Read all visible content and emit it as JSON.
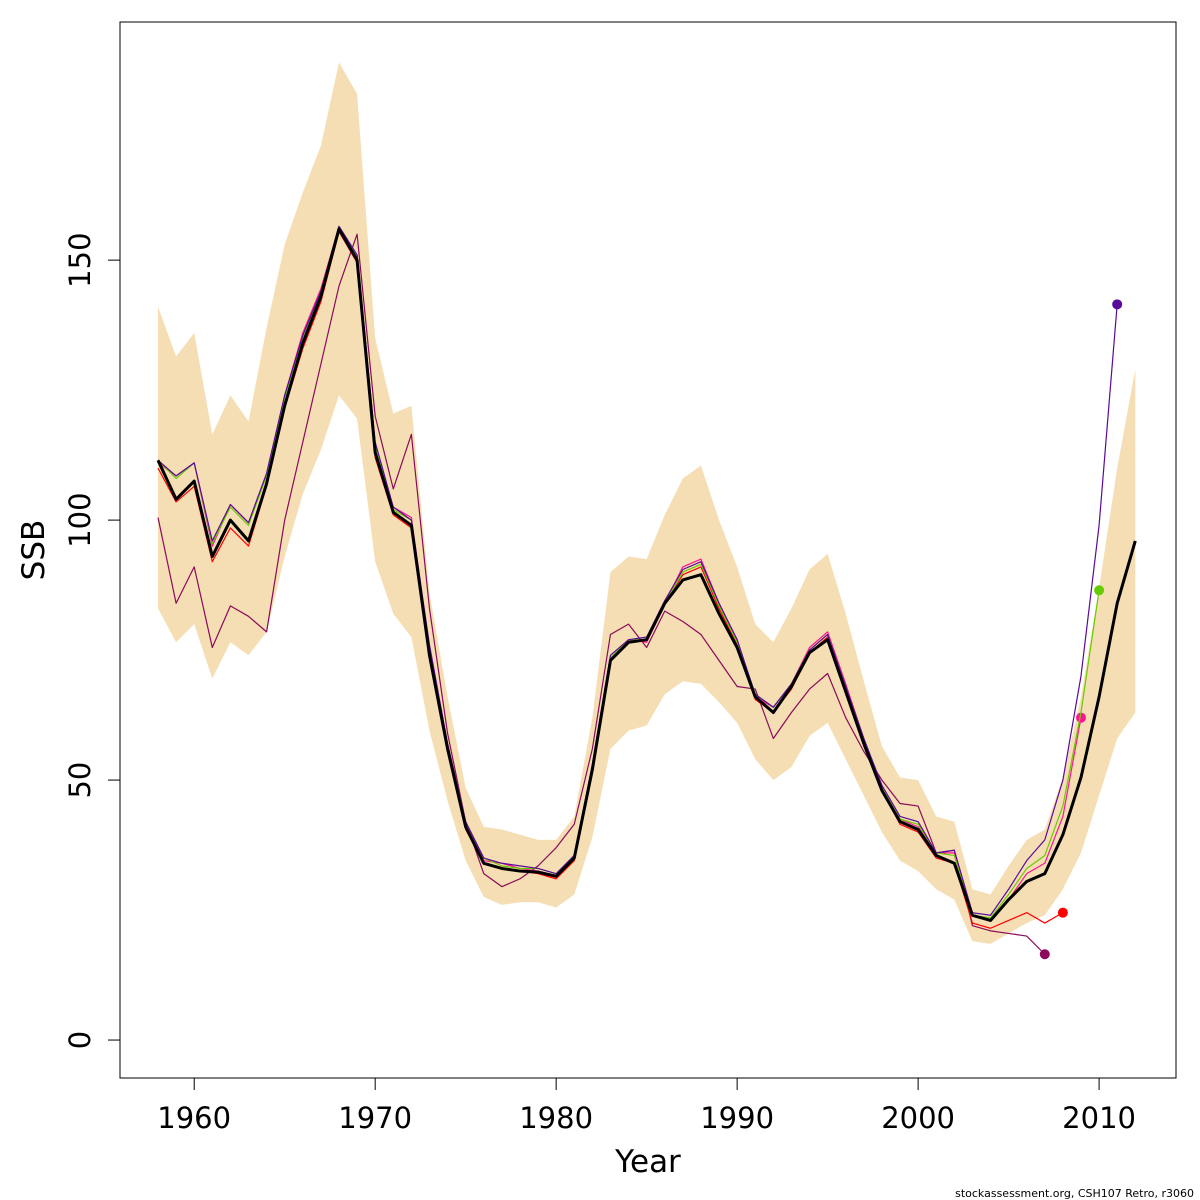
{
  "chart_data": {
    "type": "line",
    "xlabel": "Year",
    "ylabel": "SSB",
    "caption": "stockassessment.org, CSH107 Retro, r3060",
    "xlim": [
      1955.9,
      2014.25
    ],
    "ylim": [
      -7.3,
      195.8
    ],
    "xticks": [
      1960,
      1970,
      1980,
      1990,
      2000,
      2010
    ],
    "yticks": [
      0,
      50,
      100,
      150
    ],
    "x": [
      1958,
      1959,
      1960,
      1961,
      1962,
      1963,
      1964,
      1965,
      1966,
      1967,
      1968,
      1969,
      1970,
      1971,
      1972,
      1973,
      1974,
      1975,
      1976,
      1977,
      1978,
      1979,
      1980,
      1981,
      1982,
      1983,
      1984,
      1985,
      1986,
      1987,
      1988,
      1989,
      1990,
      1991,
      1992,
      1993,
      1994,
      1995,
      1996,
      1997,
      1998,
      1999,
      2000,
      2001,
      2002,
      2003,
      2004,
      2005,
      2006,
      2007,
      2008,
      2009,
      2010,
      2011,
      2012
    ],
    "band": {
      "color": "#f5deb3",
      "upper": [
        141,
        131.5,
        136,
        116.5,
        124,
        119,
        137,
        153,
        163,
        172,
        188,
        182,
        135,
        120.5,
        122,
        86,
        66,
        48.5,
        41,
        40.5,
        39.5,
        38.5,
        38.5,
        43,
        62,
        90,
        93,
        92.5,
        101,
        108,
        110.5,
        100,
        91,
        80,
        76.5,
        83,
        90.5,
        93.5,
        82,
        69,
        56.5,
        50.5,
        50,
        43,
        42,
        29,
        28,
        33.5,
        38.5,
        40.5,
        50.5,
        66,
        87,
        110,
        129
      ],
      "lower": [
        83,
        76.5,
        80,
        69.5,
        76.5,
        74,
        78.5,
        93,
        105,
        113.5,
        124,
        119.5,
        92,
        82,
        77.5,
        59.5,
        46,
        34.5,
        27.5,
        26,
        26.5,
        26.5,
        25.5,
        28,
        39,
        56,
        59.5,
        60.5,
        66.5,
        69,
        68.5,
        65,
        61,
        54,
        50,
        52.5,
        58.5,
        61,
        54,
        47,
        40,
        34.5,
        32.5,
        29,
        27,
        19,
        18.5,
        20.5,
        22.5,
        24,
        29,
        36,
        47,
        58,
        63
      ]
    },
    "series": [
      {
        "color": "#8b0a5a",
        "end_marker": true,
        "values": [
          100.5,
          84,
          91,
          75.5,
          83.5,
          81.5,
          78.5,
          100,
          115,
          130,
          145,
          155,
          120,
          106,
          116.5,
          83,
          59,
          42,
          32,
          29.5,
          31,
          33.5,
          37,
          41.5,
          56,
          78,
          80,
          75.5,
          82.5,
          80.5,
          78,
          73,
          68,
          67.5,
          58,
          63,
          67.5,
          70.5,
          62,
          55.5,
          50,
          45.5,
          45,
          36,
          36.5,
          22,
          21,
          20.5,
          20,
          16.5,
          null,
          null,
          null,
          null,
          null
        ]
      },
      {
        "color": "#ff0000",
        "end_marker": true,
        "values": [
          110,
          103.5,
          106.5,
          92,
          98.5,
          95,
          106.5,
          121.5,
          133,
          142,
          155.5,
          149.5,
          112,
          101,
          98.5,
          74,
          55.5,
          40.5,
          34,
          33,
          32.5,
          32,
          31,
          34.5,
          51.5,
          73,
          76.5,
          77,
          84,
          89.5,
          91,
          83,
          76,
          65.5,
          63,
          67.5,
          74.5,
          77.5,
          67,
          57,
          48,
          41.5,
          40,
          35,
          34,
          22.5,
          21.5,
          23,
          24.5,
          22.5,
          24.5,
          null,
          null,
          null,
          null
        ]
      },
      {
        "color": "#ff1493",
        "end_marker": true,
        "values": [
          111,
          108.5,
          111,
          95,
          103,
          99.5,
          108.5,
          124,
          136,
          144.5,
          156.5,
          151,
          114,
          102.5,
          100.5,
          75.5,
          57,
          41.5,
          34.5,
          34,
          33,
          32.5,
          31.5,
          35,
          52.5,
          73.5,
          77,
          76.5,
          84,
          91,
          92.5,
          84,
          77,
          66,
          64,
          68.5,
          75.5,
          78.5,
          68.5,
          58,
          48.5,
          42.5,
          41,
          36,
          36,
          24,
          23,
          27,
          32,
          34,
          43,
          62,
          null,
          null,
          null
        ]
      },
      {
        "color": "#66cc00",
        "end_marker": true,
        "values": [
          111.5,
          108,
          111,
          95.5,
          102.5,
          99,
          108.5,
          123.5,
          135,
          144,
          156.5,
          150.5,
          114.5,
          102,
          100,
          75.5,
          57,
          42,
          35,
          33.5,
          33,
          33,
          32,
          35.5,
          53,
          73.5,
          77,
          77,
          84,
          90,
          91.5,
          83.5,
          76.5,
          66.5,
          64,
          68.5,
          75,
          78,
          68,
          58,
          48.5,
          42.5,
          41.5,
          36,
          35.5,
          24,
          23.5,
          28,
          33,
          35.5,
          45,
          63,
          86.5,
          null,
          null
        ]
      },
      {
        "color": "#5a0a9a",
        "end_marker": true,
        "values": [
          111.5,
          108.5,
          111,
          96,
          103,
          99.5,
          109,
          124,
          135.5,
          144,
          156.5,
          151,
          115,
          102.5,
          100,
          76,
          57,
          42,
          35,
          34,
          33.5,
          33,
          32,
          35.5,
          53,
          74,
          77,
          77.5,
          84.5,
          90.5,
          92,
          84,
          77,
          66.5,
          64,
          68.5,
          75,
          78,
          68,
          58,
          49,
          43,
          42,
          36,
          36.5,
          24.5,
          24,
          29,
          34.5,
          38.5,
          50,
          70,
          99,
          141.5,
          null
        ]
      },
      {
        "color": "#000000",
        "end_marker": false,
        "values": [
          111.5,
          104,
          107.5,
          93,
          100,
          96,
          107,
          122,
          134,
          143,
          156,
          150,
          113,
          101.5,
          99,
          74,
          56,
          41,
          34,
          33,
          32.5,
          32.3,
          31.5,
          35,
          52,
          73,
          76.5,
          77,
          84,
          88.5,
          89.5,
          82,
          75.5,
          66,
          63,
          68,
          74.5,
          77,
          67,
          57,
          48,
          42,
          40.5,
          35.5,
          34,
          24,
          23,
          27,
          30.5,
          32,
          39.5,
          50.5,
          66,
          84,
          96
        ]
      }
    ]
  }
}
